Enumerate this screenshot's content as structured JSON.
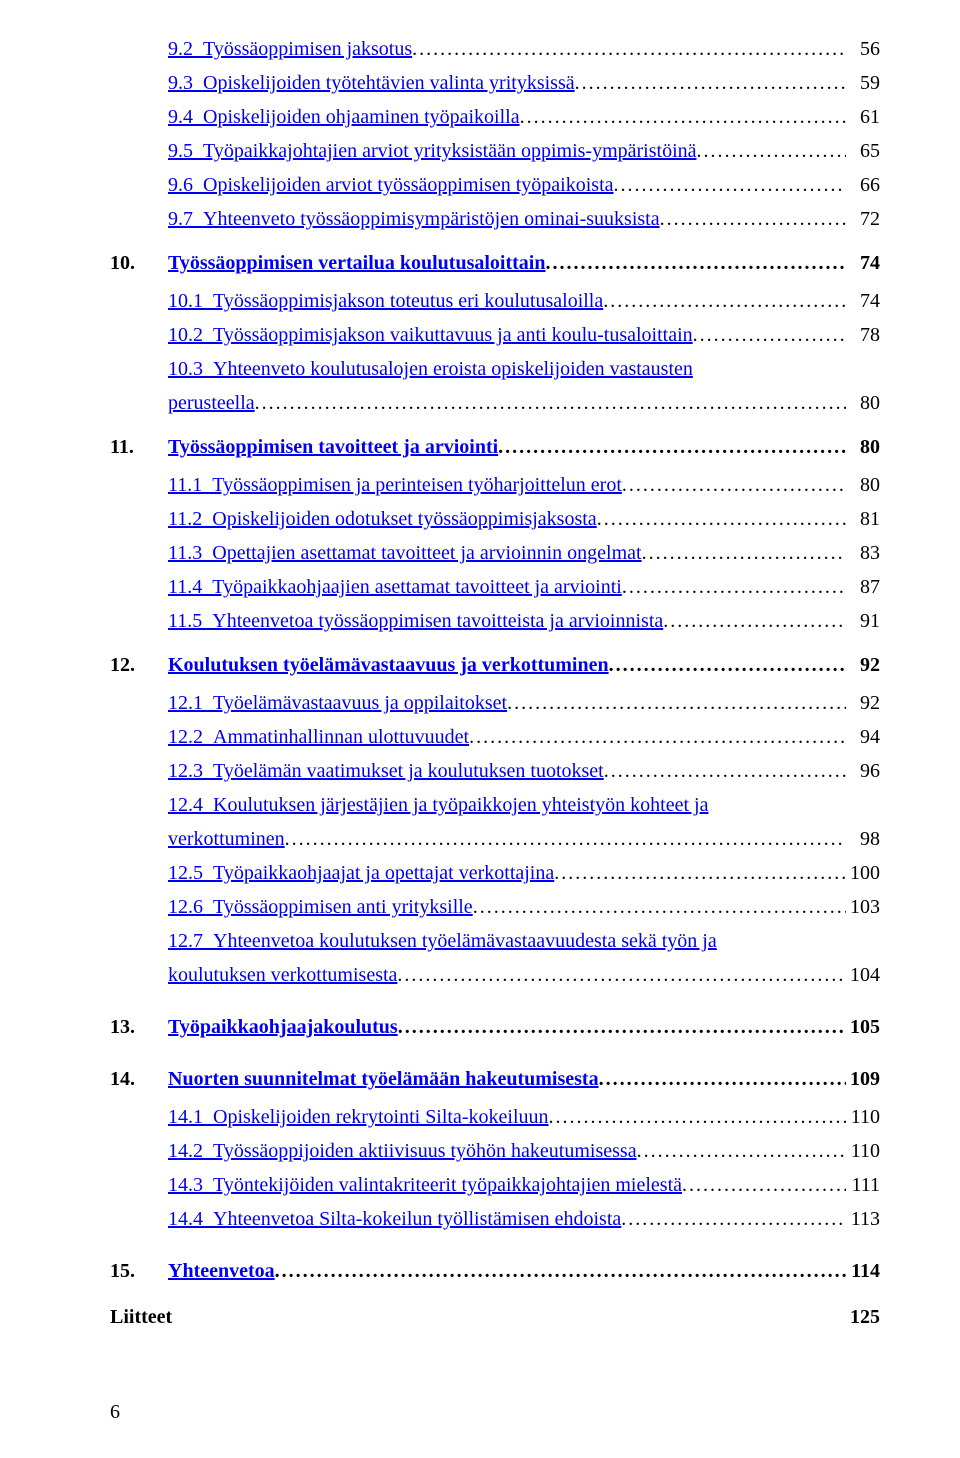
{
  "colors": {
    "link": "#0000ee",
    "text": "#000000",
    "bg": "#ffffff"
  },
  "toc": [
    {
      "type": "sub",
      "link": true,
      "num": "9.2",
      "label": "Työssäoppimisen jaksotus",
      "page": "56"
    },
    {
      "type": "sub",
      "link": true,
      "num": "9.3",
      "label": "Opiskelijoiden työtehtävien valinta yrityksissä",
      "page": "59"
    },
    {
      "type": "sub",
      "link": true,
      "num": "9.4",
      "label": "Opiskelijoiden ohjaaminen työpaikoilla",
      "page": "61"
    },
    {
      "type": "sub",
      "link": true,
      "num": "9.5",
      "label": "Työpaikkajohtajien arviot yrityksistään oppimis-ympäristöinä",
      "page": "65"
    },
    {
      "type": "sub",
      "link": true,
      "num": "9.6",
      "label": "Opiskelijoiden arviot työssäoppimisen työpaikoista",
      "page": "66"
    },
    {
      "type": "sub",
      "link": true,
      "num": "9.7",
      "label": "Yhteenveto työssäoppimisympäristöjen ominai-suuksista",
      "page": "72"
    },
    {
      "type": "main",
      "link": true,
      "num": "10.",
      "label": "Työssäoppimisen vertailua koulutusaloittain",
      "page": "74"
    },
    {
      "type": "sub",
      "link": true,
      "num": "10.1",
      "label": "Työssäoppimisjakson toteutus eri koulutusaloilla",
      "page": "74"
    },
    {
      "type": "sub",
      "link": true,
      "num": "10.2",
      "label": "Työssäoppimisjakson vaikuttavuus ja anti koulu-tusaloittain",
      "page": "78"
    },
    {
      "type": "sub",
      "link": true,
      "num": "10.3",
      "label": "Yhteenveto koulutusalojen eroista opiskelijoiden vastausten",
      "page": "",
      "nowrap_page": false
    },
    {
      "type": "wrap",
      "link": true,
      "label": "perusteella",
      "page": "80"
    },
    {
      "type": "main",
      "link": true,
      "num": "11.",
      "label": "Työssäoppimisen tavoitteet ja arviointi",
      "page": "80"
    },
    {
      "type": "sub",
      "link": true,
      "num": "11.1",
      "label": "Työssäoppimisen ja perinteisen työharjoittelun erot",
      "page": "80"
    },
    {
      "type": "sub",
      "link": true,
      "num": "11.2",
      "label": "Opiskelijoiden odotukset työssäoppimisjaksosta",
      "page": "81"
    },
    {
      "type": "sub",
      "link": true,
      "num": "11.3",
      "label": "Opettajien asettamat tavoitteet ja arvioinnin ongelmat",
      "page": "83"
    },
    {
      "type": "sub",
      "link": true,
      "num": "11.4",
      "label": "Työpaikkaohjaajien asettamat tavoitteet ja arviointi",
      "page": "87"
    },
    {
      "type": "sub",
      "link": true,
      "num": "11.5",
      "label": "Yhteenvetoa työssäoppimisen tavoitteista ja arvioinnista",
      "page": "91"
    },
    {
      "type": "main",
      "link": true,
      "num": "12.",
      "label": "Koulutuksen työelämävastaavuus ja verkottuminen",
      "page": "92"
    },
    {
      "type": "sub",
      "link": true,
      "num": "12.1",
      "label": "Työelämävastaavuus ja oppilaitokset",
      "page": "92"
    },
    {
      "type": "sub",
      "link": true,
      "num": "12.2",
      "label": "Ammatinhallinnan ulottuvuudet",
      "page": "94"
    },
    {
      "type": "sub",
      "link": true,
      "num": "12.3",
      "label": "Työelämän vaatimukset ja koulutuksen tuotokset",
      "page": "96"
    },
    {
      "type": "sub",
      "link": true,
      "num": "12.4",
      "label": "Koulutuksen järjestäjien ja työpaikkojen yhteistyön kohteet ja",
      "page": ""
    },
    {
      "type": "wrap",
      "link": true,
      "label": "verkottuminen",
      "page": "98"
    },
    {
      "type": "sub",
      "link": true,
      "num": "12.5",
      "label": "Työpaikkaohjaajat ja opettajat verkottajina",
      "page": "100"
    },
    {
      "type": "sub",
      "link": true,
      "num": "12.6",
      "label": "Työssäoppimisen anti yrityksille",
      "page": "103"
    },
    {
      "type": "sub",
      "link": true,
      "num": "12.7",
      "label": "Yhteenvetoa koulutuksen työelämävastaavuudesta sekä työn ja",
      "page": ""
    },
    {
      "type": "wrap",
      "link": true,
      "label": "koulutuksen verkottumisesta",
      "page": "104"
    },
    {
      "type": "main",
      "link": true,
      "num": "13.",
      "label": "Työpaikkaohjaajakoulutus",
      "page": "105",
      "loose": true
    },
    {
      "type": "main",
      "link": true,
      "num": "14.",
      "label": "Nuorten suunnitelmat työelämään hakeutumisesta",
      "page": "109",
      "loose": true
    },
    {
      "type": "sub",
      "link": true,
      "num": "14.1",
      "label": "Opiskelijoiden rekrytointi Silta-kokeiluun",
      "page": "110"
    },
    {
      "type": "sub",
      "link": true,
      "num": "14.2",
      "label": "Työssäoppijoiden aktiivisuus työhön hakeutumisessa",
      "page": "110"
    },
    {
      "type": "sub",
      "link": true,
      "num": "14.3",
      "label": "Työntekijöiden valintakriteerit työpaikkajohtajien mielestä",
      "page": "111"
    },
    {
      "type": "sub",
      "link": true,
      "num": "14.4",
      "label": "Yhteenvetoa Silta-kokeilun työllistämisen ehdoista",
      "page": "113"
    },
    {
      "type": "main",
      "link": true,
      "num": "15.",
      "label": "Yhteenvetoa",
      "page": "114",
      "loose": true
    }
  ],
  "appendix": {
    "label": "Liitteet",
    "page": "125"
  },
  "page_number": "6"
}
